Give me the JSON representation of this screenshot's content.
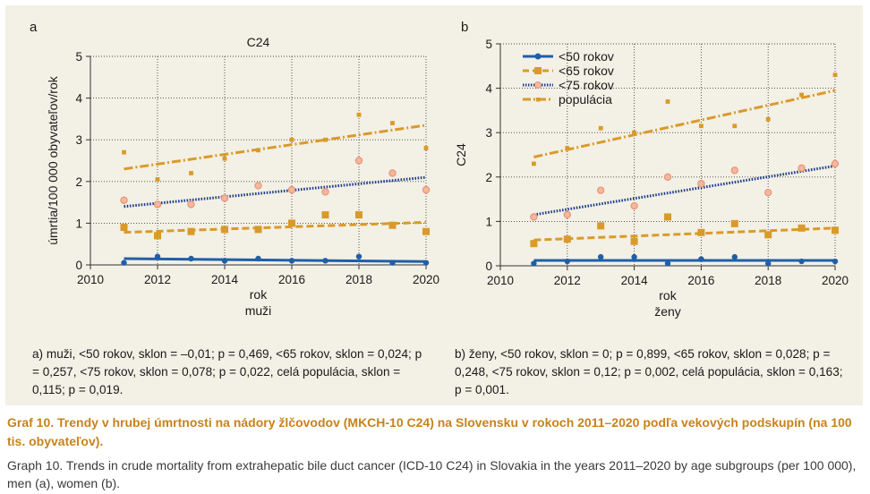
{
  "chart_data": [
    {
      "type": "scatter",
      "panel": "a",
      "title": "C24",
      "ylabel": "úmrtia/100 000 obyvateľov/rok",
      "xlabel": "rok",
      "subgroup_label": "muži",
      "xlim": [
        2010,
        2020
      ],
      "ylim": [
        0,
        5
      ],
      "xticks": [
        "2010",
        "2012",
        "2014",
        "2016",
        "2018",
        "2020"
      ],
      "yticks": [
        "0",
        "1",
        "2",
        "3",
        "4",
        "5"
      ],
      "grid": true,
      "x": [
        2011,
        2012,
        2013,
        2014,
        2015,
        2016,
        2017,
        2018,
        2019,
        2020
      ],
      "series": [
        {
          "name": "<50 rokov",
          "values": [
            0.05,
            0.2,
            0.15,
            0.1,
            0.15,
            0.1,
            0.1,
            0.2,
            0.05,
            0.05
          ],
          "trend": [
            0.15,
            0.08
          ],
          "color": "#1f5fa8",
          "style": "solid",
          "marker": "circle"
        },
        {
          "name": "<65 rokov",
          "values": [
            0.9,
            0.7,
            0.8,
            0.85,
            0.85,
            1.0,
            1.2,
            1.2,
            0.95,
            0.8
          ],
          "trend": [
            0.78,
            1.02
          ],
          "color": "#d99a2a",
          "style": "dashed",
          "marker": "square"
        },
        {
          "name": "<75 rokov",
          "values": [
            1.55,
            1.45,
            1.45,
            1.6,
            1.9,
            1.8,
            1.75,
            2.5,
            2.2,
            1.8
          ],
          "trend": [
            1.4,
            2.1
          ],
          "color": "#1f3f8a",
          "style": "dotted",
          "marker": "ring"
        },
        {
          "name": "populácia",
          "values": [
            2.7,
            2.05,
            2.2,
            2.55,
            2.75,
            3.0,
            3.0,
            3.6,
            3.4,
            2.8
          ],
          "trend": [
            2.3,
            3.35
          ],
          "color": "#d99a2a",
          "style": "dashdot",
          "marker": "small-square"
        }
      ]
    },
    {
      "type": "scatter",
      "panel": "b",
      "title": "",
      "ylabel": "C24",
      "xlabel": "rok",
      "subgroup_label": "ženy",
      "xlim": [
        2010,
        2020
      ],
      "ylim": [
        0,
        5
      ],
      "xticks": [
        "2010",
        "2012",
        "2014",
        "2016",
        "2018",
        "2020"
      ],
      "yticks": [
        "0",
        "1",
        "2",
        "3",
        "4",
        "5"
      ],
      "grid": true,
      "legend_position": "top-left",
      "x": [
        2011,
        2012,
        2013,
        2014,
        2015,
        2016,
        2017,
        2018,
        2019,
        2020
      ],
      "series": [
        {
          "name": "<50 rokov",
          "values": [
            0.05,
            0.1,
            0.2,
            0.2,
            0.05,
            0.15,
            0.2,
            0.05,
            0.1,
            0.1
          ],
          "trend": [
            0.12,
            0.12
          ],
          "color": "#1f5fa8",
          "style": "solid",
          "marker": "circle"
        },
        {
          "name": "<65 rokov",
          "values": [
            0.5,
            0.6,
            0.9,
            0.55,
            1.1,
            0.75,
            0.95,
            0.7,
            0.85,
            0.8
          ],
          "trend": [
            0.58,
            0.85
          ],
          "color": "#d99a2a",
          "style": "dashed",
          "marker": "square"
        },
        {
          "name": "<75 rokov",
          "values": [
            1.1,
            1.15,
            1.7,
            1.35,
            2.0,
            1.85,
            2.15,
            1.65,
            2.2,
            2.3
          ],
          "trend": [
            1.15,
            2.25
          ],
          "color": "#1f3f8a",
          "style": "dotted",
          "marker": "ring"
        },
        {
          "name": "populácia",
          "values": [
            2.3,
            2.65,
            3.1,
            3.0,
            3.7,
            3.15,
            3.15,
            3.3,
            3.85,
            4.3
          ],
          "trend": [
            2.45,
            3.95
          ],
          "color": "#d99a2a",
          "style": "dashdot",
          "marker": "small-square"
        }
      ]
    }
  ],
  "panels": {
    "a": {
      "letter": "a",
      "note": "a) muži, <50 rokov, sklon = –0,01; p = 0,469, <65 rokov, sklon = 0,024; p = 0,257, <75 rokov, sklon = 0,078; p = 0,022, celá populácia, sklon = 0,115; p = 0,019."
    },
    "b": {
      "letter": "b",
      "note": "b) ženy, <50 rokov, sklon = 0; p = 0,899, <65 rokov, sklon = 0,028; p = 0,248, <75 rokov, sklon = 0,12; p = 0,002, celá populácia, sklon = 0,163; p = 0,001."
    }
  },
  "legend": {
    "items": [
      "<50 rokov",
      "<65 rokov",
      "<75 rokov",
      "populácia"
    ]
  },
  "caption": {
    "title": "Graf 10. Trendy v hrubej úmrtnosti na nádory žlčovodov (MKCH-10 C24) na Slovensku v rokoch 2011–2020 podľa vekových podskupín (na 100 tis. obyvateľov).",
    "english": "Graph 10. Trends in crude mortality from extrahepatic bile duct cancer (ICD-10 C24) in Slovakia in the years 2011–2020 by age subgroups (per 100 000), men (a), women (b)."
  }
}
